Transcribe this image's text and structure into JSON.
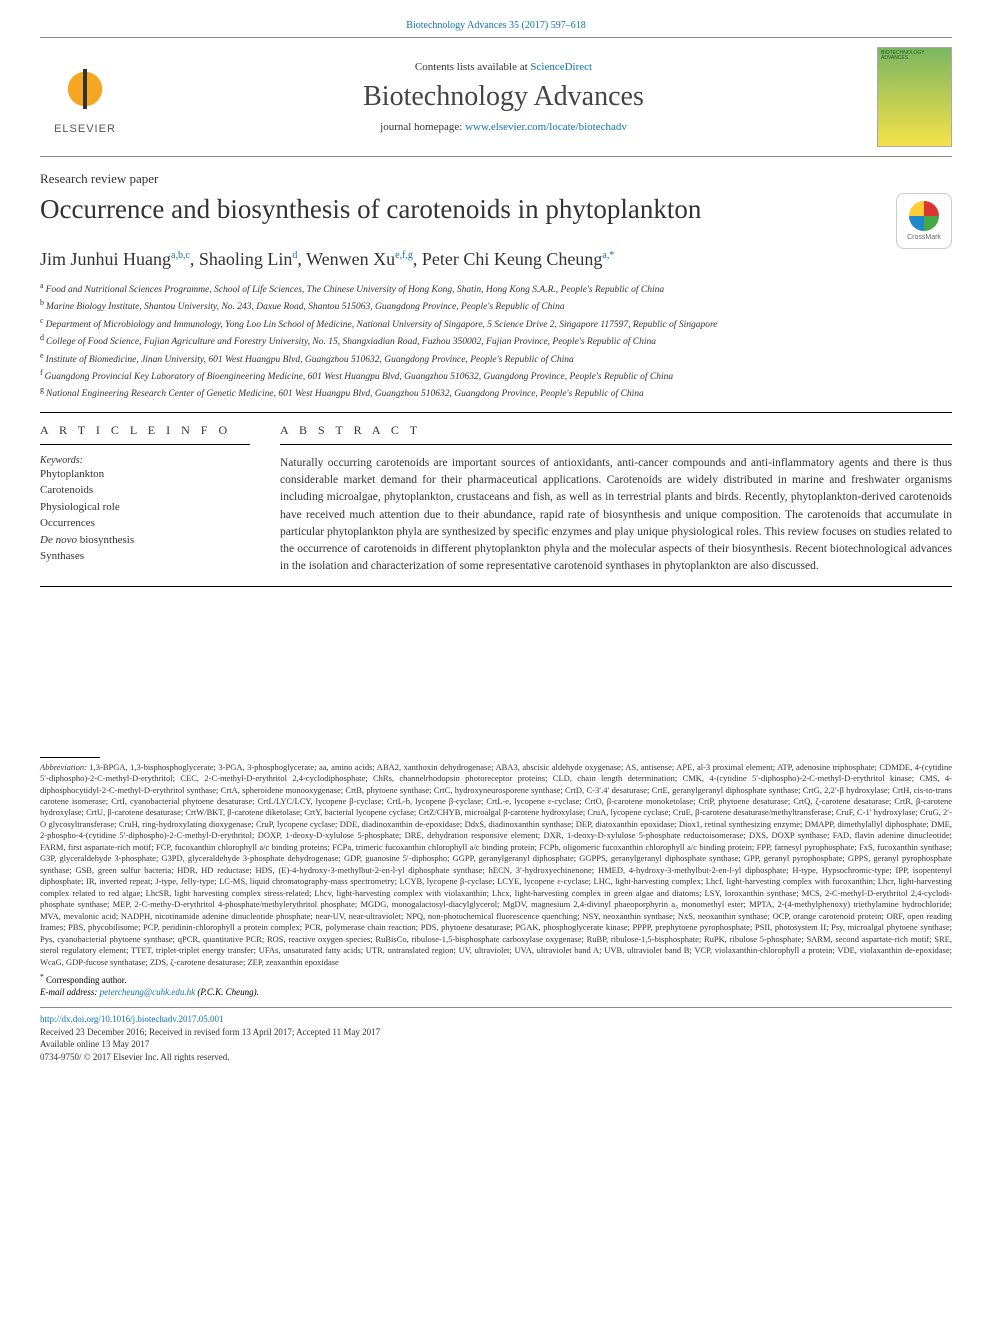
{
  "running_head": "Biotechnology Advances 35 (2017) 597–618",
  "header": {
    "contents_prefix": "Contents lists available at ",
    "contents_link": "ScienceDirect",
    "journal_name": "Biotechnology Advances",
    "homepage_prefix": "journal homepage: ",
    "homepage_url": "www.elsevier.com/locate/biotechadv",
    "publisher": "ELSEVIER",
    "cover_label": "BIOTECHNOLOGY ADVANCES"
  },
  "article": {
    "type": "Research review paper",
    "title": "Occurrence and biosynthesis of carotenoids in phytoplankton",
    "crossmark": "CrossMark",
    "authors_html": "Jim Junhui Huang|a,b,c|, Shaoling Lin|d|, Wenwen Xu|e,f,g|, Peter Chi Keung Cheung|a,*|"
  },
  "affiliations": {
    "a": "Food and Nutritional Sciences Programme, School of Life Sciences, The Chinese University of Hong Kong, Shatin, Hong Kong S.A.R., People's Republic of China",
    "b": "Marine Biology Institute, Shantou University, No. 243, Daxue Road, Shantou 515063, Guangdong Province, People's Republic of China",
    "c": "Department of Microbiology and Immunology, Yong Loo Lin School of Medicine, National University of Singapore, 5 Science Drive 2, Singapore 117597, Republic of Singapore",
    "d": "College of Food Science, Fujian Agriculture and Forestry University, No. 15, Shangxiadian Road, Fuzhou 350002, Fujian Province, People's Republic of China",
    "e": "Institute of Biomedicine, Jinan University, 601 West Huangpu Blvd, Guangzhou 510632, Guangdong Province, People's Republic of China",
    "f": "Guangdong Provincial Key Laboratory of Bioengineering Medicine, 601 West Huangpu Blvd, Guangzhou 510632, Guangdong Province, People's Republic of China",
    "g": "National Engineering Research Center of Genetic Medicine, 601 West Huangpu Blvd, Guangzhou 510632, Guangdong Province, People's Republic of China"
  },
  "info": {
    "heading": "A R T I C L E  I N F O",
    "keywords_label": "Keywords:",
    "keywords": [
      "Phytoplankton",
      "Carotenoids",
      "Physiological role",
      "Occurrences",
      "De novo biosynthesis",
      "Synthases"
    ]
  },
  "abstract": {
    "heading": "A B S T R A C T",
    "text": "Naturally occurring carotenoids are important sources of antioxidants, anti-cancer compounds and anti-inflammatory agents and there is thus considerable market demand for their pharmaceutical applications. Carotenoids are widely distributed in marine and freshwater organisms including microalgae, phytoplankton, crustaceans and fish, as well as in terrestrial plants and birds. Recently, phytoplankton-derived carotenoids have received much attention due to their abundance, rapid rate of biosynthesis and unique composition. The carotenoids that accumulate in particular phytoplankton phyla are synthesized by specific enzymes and play unique physiological roles. This review focuses on studies related to the occurrence of carotenoids in different phytoplankton phyla and the molecular aspects of their biosynthesis. Recent biotechnological advances in the isolation and characterization of some representative carotenoid synthases in phytoplankton are also discussed."
  },
  "abbreviations": {
    "label": "Abbreviation:",
    "text": "1,3-BPGA, 1,3-bisphosphoglycerate; 3-PGA, 3-phosphoglycerate; aa, amino acids; ABA2, xanthoxin dehydrogenase; ABA3, abscisic aldehyde oxygenase; AS, antisense; APE, al-3 proximal element; ATP, adenosine triphosphate; CDMDE, 4-(cytidine 5′-diphospho)-2-C-methyl-D-erythritol; CEC, 2-C-methyl-D-erythritol 2,4-cyclodiphosphate; ChRs, channelrhodopsin photoreceptor proteins; CLD, chain length determination; CMK, 4-(cytidine 5′-diphospho)-2-C-methyl-D-erythritol kinase; CMS, 4-diphosphocytidyl-2-C-methyl-D-erythritol synthase; CrtA, spheroidene monooxygenase; CrtB, phytoene synthase; CrtC, hydroxyneurosporene synthase; CrtD, C-3′.4′ desaturase; CrtE, geranylgeranyl diphosphate synthase; CrtG, 2,2′-β hydroxylase; CrtH, cis-to-trans carotene isomerase; CrtI, cyanobacterial phytoene desaturase; CrtL/LYC/LCY, lycopene β-cyclase; CrtL-b, lycopene β-cyclase; CrtL-e, lycopene ε-cyclase; CrtO, β-carotene monoketolase; CrtP, phytoene desaturase; CrtQ, ζ-carotene desaturase; CrtR, β-carotene hydroxylase; CrtU, β-carotene desaturase; CrtW/BKT, β-carotene diketolase; CrtY, bacterial lycopene cyclase; CrtZ/CHYB, microalgal β-carotene hydroxylase; CruA, lycopene cyclase; CruE, β-carotene desaturase/methyltransferase; CruF, C-1′ hydroxylase; CruG, 2′-O glycosyltransferase; CruH, ring-hydroxylating dioxygenase; CruP, lycopene cyclase; DDE, diadinoxanthin de-epoxidase; DdxS, diadinoxanthin synthase; DEP, diatoxanthin epoxidase; Diox1, retinal synthesizing enzyme; DMAPP, dimethylallyl diphosphate; DME, 2-phospho-4-(cytidine 5′-diphospho)-2-C-methyl-D-erythritol; DOXP, 1-deoxy-D-xylulose 5-phosphate; DRE, dehydration responsive element; DXR, 1-deoxy-D-xylulose 5-phosphate reductoisomerase; DXS, DOXP synthase; FAD, flavin adenine dinucleotide; FARM, first aspartate-rich motif; FCP, fucoxanthin chlorophyll a/c binding proteins; FCPa, trimeric fucoxanthin chlorophyll a/c binding protein; FCPb, oligomeric fucoxanthin chlorophyll a/c binding protein; FPP, farnesyl pyrophosphate; FxS, fucoxanthin synthase; G3P, glyceraldehyde 3-phosphate; G3PD, glyceraldehyde 3-phosphate dehydrogenase; GDP, guanosine 5′-diphospho; GGPP, geranylgeranyl diphosphate; GGPPS, geranylgeranyl diphosphate synthase; GPP, geranyl pyrophosphate; GPPS, geranyl pyrophosphate synthase; GSB, green sulfur bacteria; HDR, HD reductase; HDS, (E)-4-hydroxy-3-methylbut-2-en-l-yl diphosphate synthase; hECN, 3′-hydroxyechinenone; HMED, 4-hydroxy-3-methylbut-2-en-l-yl diphosphate; H-type, Hypsochromic-type; IPP, isopentenyl diphosphate; IR, inverted repeat; J-type, Jelly-type; LC-MS, liquid chromatography-mass spectrometry; LCYB, lycopene β-cyclase; LCYE, lycopene ε-cyclase; LHC, light-harvesting complex; Lhcf, light-harvesting complex with fucoxanthin; Lhcr, light-harvesting complex related to red algae; LhcSR, light harvesting complex stress-related; Lhcv, light-harvesting complex with violaxanthin; Lhcx, light-harvesting complex in green algae and diatoms; LSY, loroxanthin synthase; MCS, 2-C-methyl-D-erythritol 2,4-cyclodi-phosphate synthase; MEP, 2-C-methy-D-erythritol 4-phosphate/methylerythritol phosphate; MGDG, monogalactosyl-diacylglycerol; MgDV, magnesium 2,4-divinyl phaeoporphyrin a₅ monomethyl ester; MPTA, 2-(4-methylphenoxy) triethylamine hydrochloride; MVA, mevalonic acid; NADPH, nicotinamide adenine dinucleotide phosphate; near-UV, near-ultraviolet; NPQ, non-photochemical fluorescence quenching; NSY, neoxanthin synthase; NxS, neoxanthin synthase; OCP, orange carotenoid protein; ORF, open reading frames; PBS, phycobilisome; PCP, peridinin-chlorophyll a protein complex; PCR, polymerase chain reaction; PDS, phytoene desaturase; PGAK, phosphoglycerate kinase; PPPP, prephytoene pyrophosphate; PSII, photosystem II; Psy, microalgal phytoene synthase; Pys, cyanobacterial phytoene synthase; qPCR, quantitative PCR; ROS, reactive oxygen species; RuBisCo, ribulose-1,5-bisphosphate carboxylase oxygenase; RuBP, ribulose-1,5-bisphosphate; RuPK, ribulose 5-phosphate; SARM, second aspartate-rich motif; SRE, sterol regulatory element; TTET, triplet-triplet energy transfer; UFAs, unsaturated fatty acids; UTR, untranslated region; UV, ultraviolet; UVA, ultraviolet band A; UVB, ultraviolet band B; VCP, violaxanthin-chlorophyll a protein; VDE, violaxanthin de-epoxidase; WcaG, GDP-fucose synthatase; ZDS, ζ-carotene desaturase; ZEP, zeaxanthin epoxidase"
  },
  "correspondence": {
    "symbol": "*",
    "text": "Corresponding author.",
    "email_label": "E-mail address:",
    "email": "petercheung@cuhk.edu.hk",
    "email_person": "(P.C.K. Cheung)."
  },
  "footer": {
    "doi": "http://dx.doi.org/10.1016/j.biotechadv.2017.05.001",
    "history": "Received 23 December 2016; Received in revised form 13 April 2017; Accepted 11 May 2017",
    "online": "Available online 13 May 2017",
    "copyright": "0734-9750/ © 2017 Elsevier Inc. All rights reserved."
  },
  "colors": {
    "link": "#1172b5",
    "text": "#333333",
    "rule": "#000000"
  }
}
